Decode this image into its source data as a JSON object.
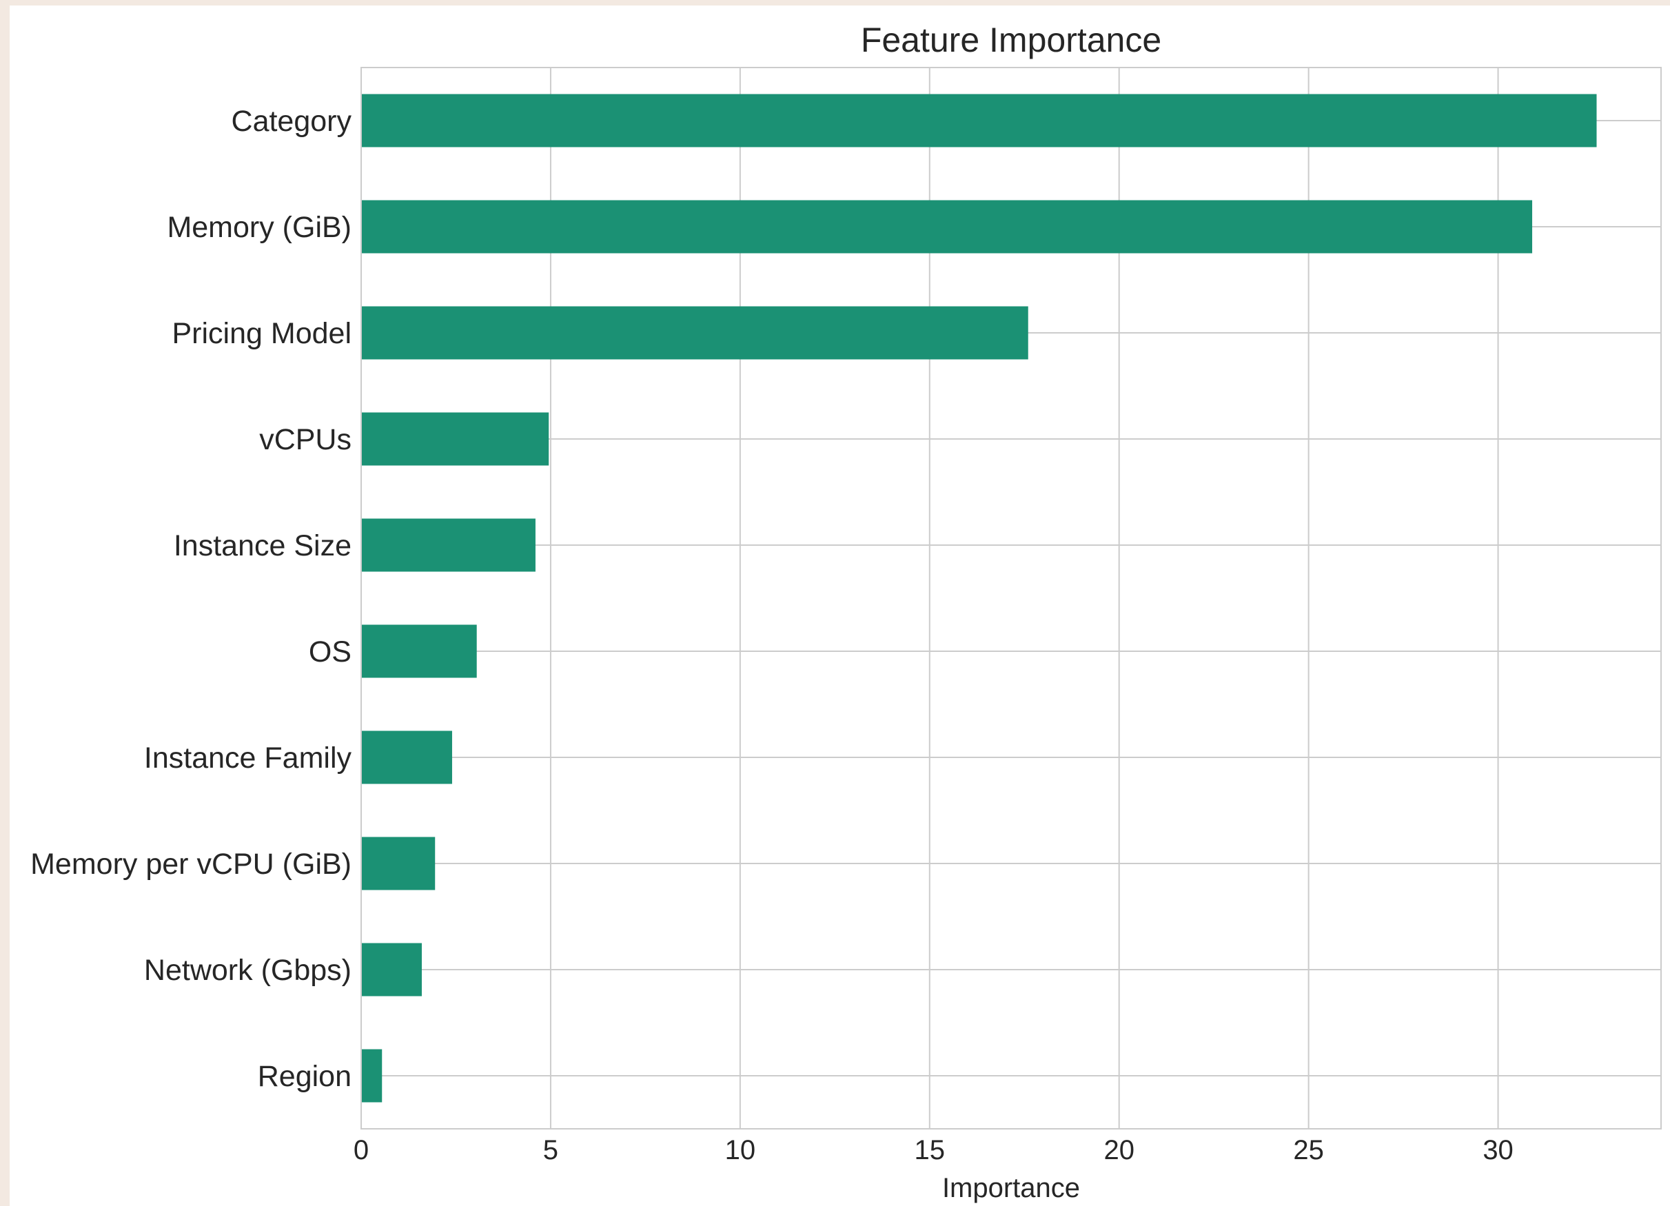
{
  "colors": {
    "bar": "#1b9174",
    "grid": "#cccccc",
    "page_background": "#f3e9e1",
    "figure_background": "#ffffff",
    "text": "#262626"
  },
  "chart_data": {
    "type": "bar",
    "orientation": "horizontal",
    "title": "Feature Importance",
    "xlabel": "Importance",
    "ylabel": "",
    "categories": [
      "Category",
      "Memory (GiB)",
      "Pricing Model",
      "vCPUs",
      "Instance Size",
      "OS",
      "Instance Family",
      "Memory per vCPU (GiB)",
      "Network (Gbps)",
      "Region"
    ],
    "values": [
      32.6,
      30.9,
      17.6,
      4.95,
      4.6,
      3.05,
      2.4,
      1.95,
      1.6,
      0.55
    ],
    "xlim": [
      0,
      34.3
    ],
    "xticks": [
      0,
      5,
      10,
      15,
      20,
      25,
      30
    ],
    "grid": true,
    "legend": "none"
  }
}
